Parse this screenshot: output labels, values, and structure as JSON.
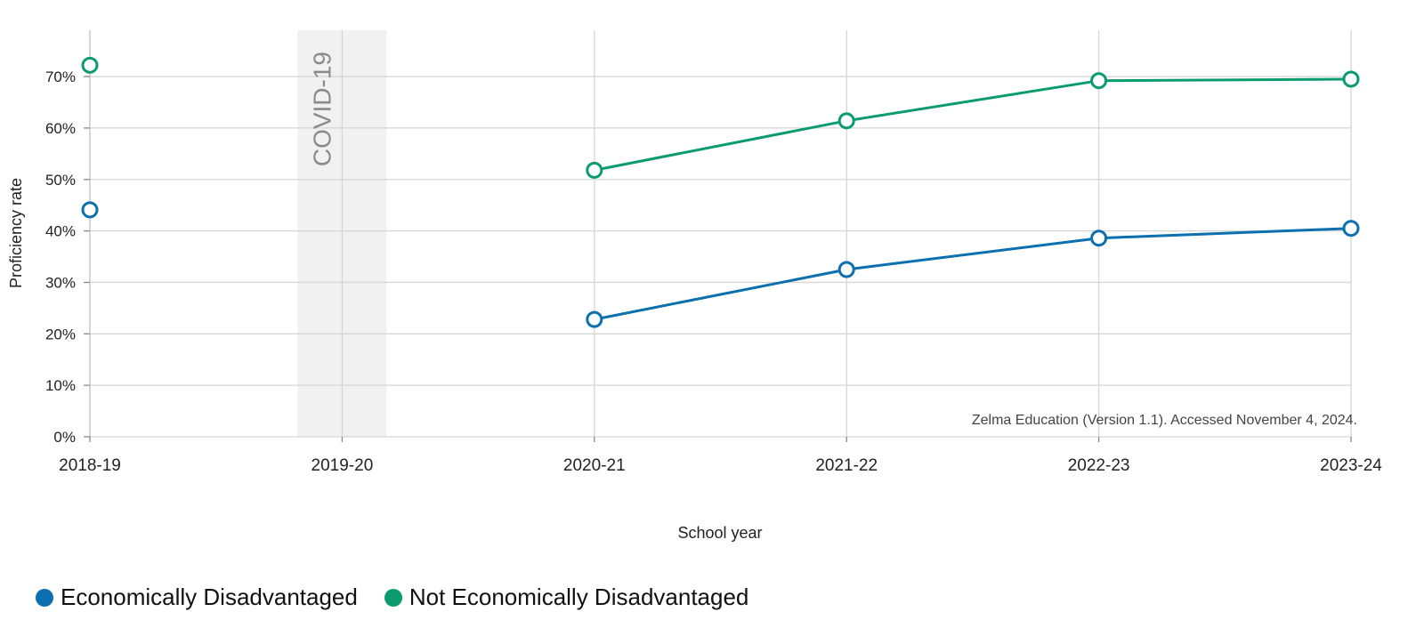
{
  "chart_data": {
    "type": "line",
    "x": [
      "2018-19",
      "2019-20",
      "2020-21",
      "2021-22",
      "2022-23",
      "2023-24"
    ],
    "xlabel": "School year",
    "ylabel": "Proficiency rate",
    "ylim": [
      0,
      0.79
    ],
    "yticks": [
      "0%",
      "10%",
      "20%",
      "30%",
      "40%",
      "50%",
      "60%",
      "70%"
    ],
    "grid": true,
    "legend_position": "bottom-left",
    "annotation_band": {
      "x": "2019-20",
      "label": "COVID-19"
    },
    "source_note": "Zelma Education (Version 1.1). Accessed November 4, 2024.",
    "series": [
      {
        "name": "Economically Disadvantaged",
        "color": "#0b6fb0",
        "values": [
          0.441,
          null,
          0.228,
          0.325,
          0.386,
          0.405
        ]
      },
      {
        "name": "Not Economically Disadvantaged",
        "color": "#0a9b6e",
        "values": [
          0.722,
          null,
          0.518,
          0.614,
          0.692,
          0.695
        ]
      }
    ]
  }
}
